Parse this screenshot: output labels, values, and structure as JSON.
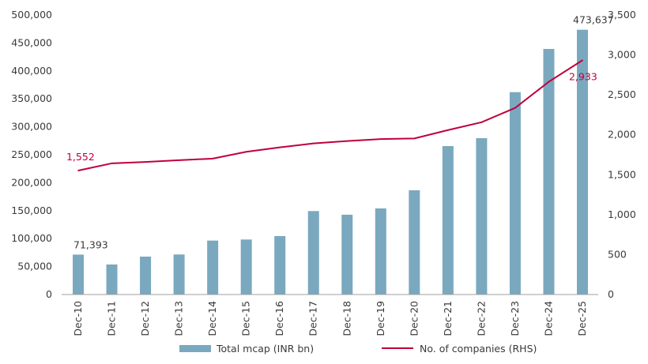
{
  "chart_data": {
    "type": "bar+line",
    "title": "",
    "categories": [
      "Dec-10",
      "Dec-11",
      "Dec-12",
      "Dec-13",
      "Dec-14",
      "Dec-15",
      "Dec-16",
      "Dec-17",
      "Dec-18",
      "Dec-19",
      "Dec-20",
      "Dec-21",
      "Dec-22",
      "Dec-23",
      "Dec-24",
      "Dec-25"
    ],
    "series": [
      {
        "name": "Total mcap (INR bn)",
        "type": "bar",
        "axis": "left",
        "color": "#7aa8bf",
        "values": [
          71393,
          53700,
          67800,
          71600,
          96500,
          98400,
          104500,
          149300,
          142700,
          154000,
          186400,
          265500,
          279700,
          362000,
          439300,
          473637
        ]
      },
      {
        "name": "No. of companies (RHS)",
        "type": "line",
        "axis": "right",
        "color": "#c0003c",
        "values": [
          1552,
          1643,
          1660,
          1682,
          1702,
          1787,
          1843,
          1892,
          1922,
          1947,
          1954,
          2059,
          2157,
          2337,
          2664,
          2933
        ]
      }
    ],
    "data_labels": [
      {
        "series": 0,
        "index": 0,
        "text": "71,393"
      },
      {
        "series": 0,
        "index": 15,
        "text": "473,637"
      },
      {
        "series": 1,
        "index": 0,
        "text": "1,552"
      },
      {
        "series": 1,
        "index": 15,
        "text": "2,933"
      }
    ],
    "y_left": {
      "range": [
        0,
        500000
      ],
      "ticks": [
        "0",
        "50,000",
        "100,000",
        "150,000",
        "200,000",
        "250,000",
        "300,000",
        "350,000",
        "400,000",
        "450,000",
        "500,000"
      ]
    },
    "y_right": {
      "range": [
        0,
        3500
      ],
      "ticks": [
        "0",
        "500",
        "1,000",
        "1,500",
        "2,000",
        "2,500",
        "3,000",
        "3,500"
      ]
    },
    "grid": false,
    "legend_position": "bottom"
  }
}
